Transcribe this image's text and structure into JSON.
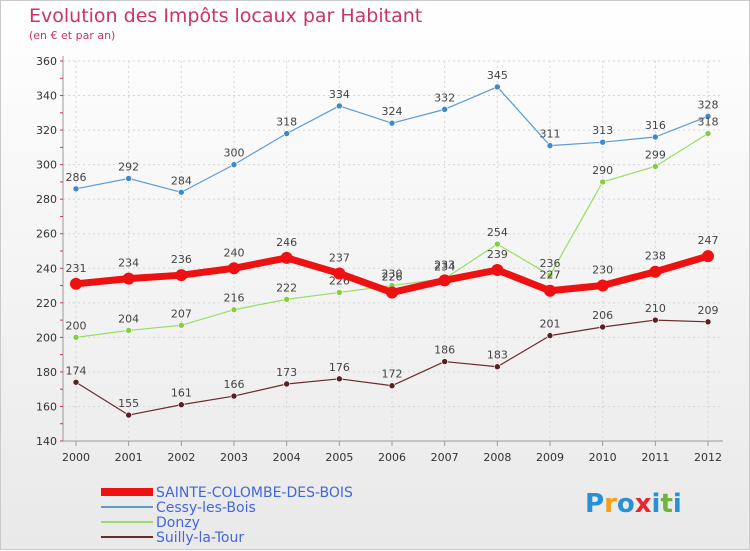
{
  "title": "Evolution des Impôts locaux par Habitant",
  "subtitle": "(en € et par an)",
  "logo": {
    "text": "Proxiti",
    "letters": [
      "P",
      "r",
      "o",
      "x",
      "i",
      "t",
      "i"
    ],
    "colors": [
      "#2b8fd6",
      "#f29f1a",
      "#2b8fd6",
      "#e8262e",
      "#2b8fd6",
      "#6fb43f",
      "#2b8fd6"
    ]
  },
  "chart_data": {
    "type": "line",
    "x": [
      "2000",
      "2001",
      "2002",
      "2003",
      "2004",
      "2005",
      "2006",
      "2007",
      "2008",
      "2009",
      "2010",
      "2011",
      "2012"
    ],
    "ylim": [
      140,
      360
    ],
    "yticks": [
      140,
      160,
      180,
      200,
      220,
      240,
      260,
      280,
      300,
      320,
      340,
      360
    ],
    "grid": true,
    "legend_position": "bottom-left",
    "series": [
      {
        "name": "Cessy-les-Bois",
        "color": "#5b9bd5",
        "dot": "#3e89c9",
        "width": 1.2,
        "values": [
          286,
          292,
          284,
          300,
          318,
          334,
          324,
          332,
          345,
          311,
          313,
          316,
          328
        ]
      },
      {
        "name": "Donzy",
        "color": "#99dd66",
        "dot": "#88cc44",
        "width": 1.2,
        "values": [
          200,
          204,
          207,
          216,
          222,
          226,
          230,
          234,
          254,
          236,
          290,
          299,
          318
        ]
      },
      {
        "name": "Suilly-la-Tour",
        "color": "#6b2b2b",
        "dot": "#5a1f1f",
        "width": 1.2,
        "values": [
          174,
          155,
          161,
          166,
          173,
          176,
          172,
          186,
          183,
          201,
          206,
          210,
          209
        ]
      },
      {
        "name": "SAINTE-COLOMBE-DES-BOIS",
        "color": "#ee1111",
        "dot": "#ee1111",
        "width": 7,
        "values": [
          231,
          234,
          236,
          240,
          246,
          237,
          226,
          233,
          239,
          227,
          230,
          238,
          247
        ]
      }
    ],
    "legend_order": [
      3,
      0,
      1,
      2
    ]
  }
}
